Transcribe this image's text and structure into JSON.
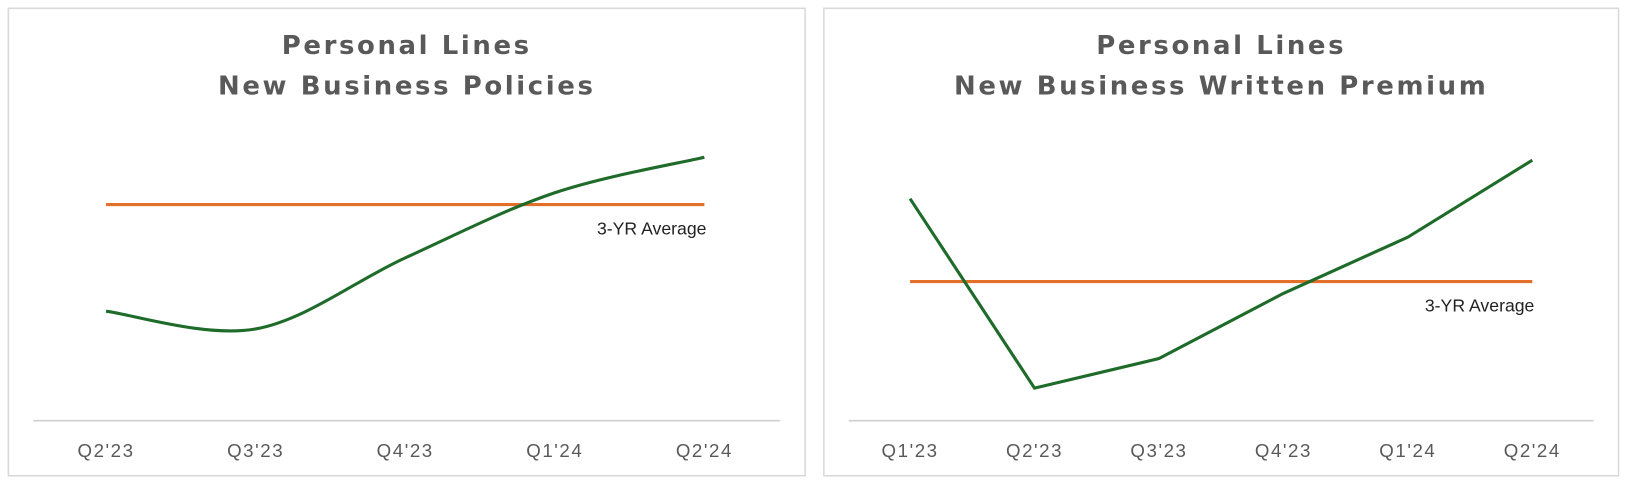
{
  "chart_data": [
    {
      "type": "line",
      "title": [
        "Personal Lines",
        "New Business Policies"
      ],
      "categories": [
        "Q2'23",
        "Q3'23",
        "Q4'23",
        "Q1'24",
        "Q2'24"
      ],
      "series": [
        {
          "color": "#1e6b2a",
          "values": [
            37,
            31,
            55,
            77,
            89
          ]
        }
      ],
      "smooth": true,
      "ylim": [
        0,
        100
      ],
      "reference_line": {
        "label": "3-YR Average",
        "value": 73,
        "color": "#e2702a"
      }
    },
    {
      "type": "line",
      "title": [
        "Personal Lines",
        "New Business Written Premium"
      ],
      "categories": [
        "Q1'23",
        "Q2'23",
        "Q3'23",
        "Q4'23",
        "Q1'24",
        "Q2'24"
      ],
      "series": [
        {
          "color": "#1e6b2a",
          "values": [
            75,
            11,
            21,
            43,
            62,
            88
          ]
        }
      ],
      "smooth": false,
      "ylim": [
        0,
        100
      ],
      "reference_line": {
        "label": "3-YR Average",
        "value": 47,
        "color": "#e2702a"
      }
    }
  ]
}
